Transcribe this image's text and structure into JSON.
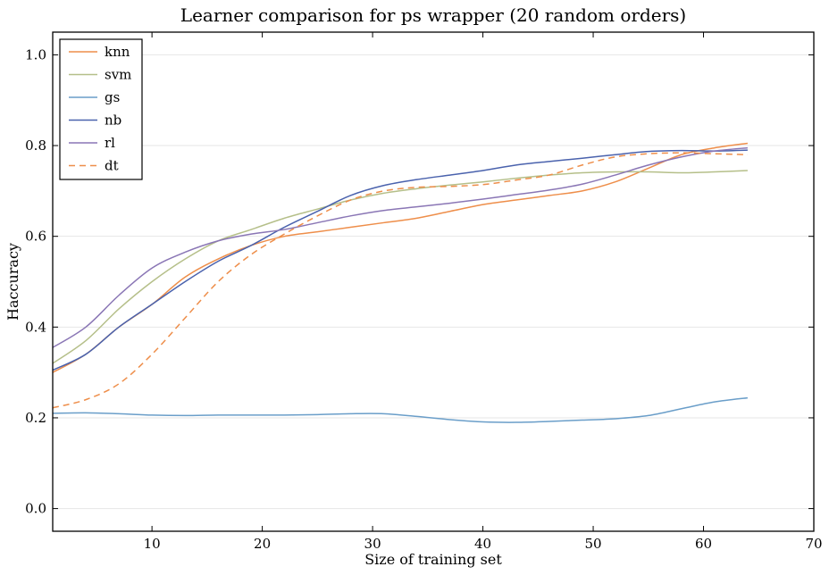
{
  "chart_data": {
    "type": "line",
    "title": "Learner comparison for ps wrapper (20 random orders)",
    "xlabel": "Size of training set",
    "ylabel": "Haccuracy",
    "xlim": [
      1,
      70
    ],
    "ylim": [
      -0.05,
      1.05
    ],
    "xticks": [
      10,
      20,
      30,
      40,
      50,
      60,
      70
    ],
    "yticks": [
      0.0,
      0.2,
      0.4,
      0.6,
      0.8,
      1.0
    ],
    "xtick_labels": [
      "10",
      "20",
      "30",
      "40",
      "50",
      "60",
      "70"
    ],
    "ytick_labels": [
      "0.0",
      "0.2",
      "0.4",
      "0.6",
      "0.8",
      "1.0"
    ],
    "grid": "horizontal",
    "legend_position": "top-left",
    "x": [
      1,
      4,
      7,
      10,
      13,
      16,
      19,
      22,
      25,
      28,
      31,
      34,
      37,
      40,
      43,
      46,
      49,
      52,
      55,
      58,
      61,
      64
    ],
    "series": [
      {
        "name": "knn",
        "color": "#ee8e4a",
        "style": "solid",
        "values": [
          0.3,
          0.34,
          0.4,
          0.45,
          0.51,
          0.55,
          0.58,
          0.6,
          0.61,
          0.62,
          0.63,
          0.64,
          0.655,
          0.67,
          0.68,
          0.69,
          0.7,
          0.72,
          0.75,
          0.78,
          0.795,
          0.805
        ]
      },
      {
        "name": "svm",
        "color": "#b5bf89",
        "style": "solid",
        "values": [
          0.32,
          0.37,
          0.44,
          0.5,
          0.55,
          0.59,
          0.615,
          0.64,
          0.66,
          0.68,
          0.695,
          0.705,
          0.713,
          0.72,
          0.728,
          0.735,
          0.74,
          0.742,
          0.742,
          0.74,
          0.742,
          0.745
        ]
      },
      {
        "name": "gs",
        "color": "#6a9ec9",
        "style": "solid",
        "values": [
          0.21,
          0.211,
          0.209,
          0.206,
          0.205,
          0.206,
          0.206,
          0.206,
          0.207,
          0.209,
          0.209,
          0.203,
          0.196,
          0.191,
          0.19,
          0.192,
          0.195,
          0.198,
          0.205,
          0.22,
          0.235,
          0.244
        ]
      },
      {
        "name": "nb",
        "color": "#4a62ad",
        "style": "solid",
        "values": [
          0.305,
          0.34,
          0.4,
          0.45,
          0.5,
          0.545,
          0.58,
          0.62,
          0.655,
          0.69,
          0.712,
          0.725,
          0.735,
          0.745,
          0.757,
          0.765,
          0.772,
          0.78,
          0.787,
          0.789,
          0.788,
          0.79
        ]
      },
      {
        "name": "rl",
        "color": "#8a76b5",
        "style": "solid",
        "values": [
          0.355,
          0.4,
          0.47,
          0.53,
          0.565,
          0.59,
          0.605,
          0.615,
          0.63,
          0.645,
          0.657,
          0.665,
          0.673,
          0.682,
          0.692,
          0.702,
          0.715,
          0.735,
          0.757,
          0.775,
          0.788,
          0.795
        ]
      },
      {
        "name": "dt",
        "color": "#ee8e4a",
        "style": "dashed",
        "values": [
          0.222,
          0.24,
          0.275,
          0.34,
          0.42,
          0.5,
          0.56,
          0.605,
          0.645,
          0.68,
          0.7,
          0.708,
          0.71,
          0.714,
          0.724,
          0.735,
          0.757,
          0.775,
          0.782,
          0.784,
          0.782,
          0.78
        ]
      }
    ]
  }
}
